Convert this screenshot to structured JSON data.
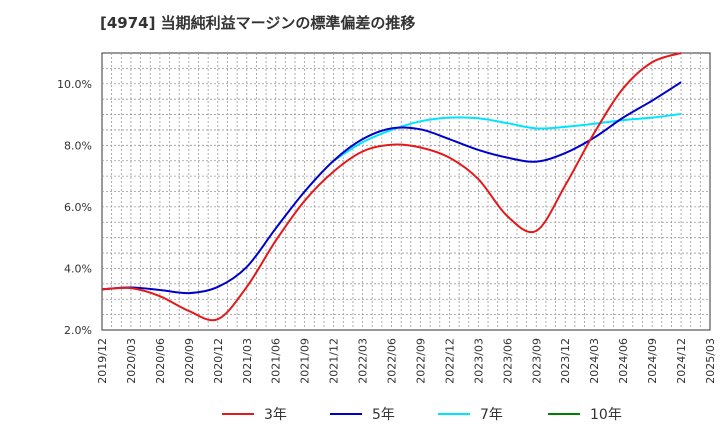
{
  "chart_data": {
    "type": "line",
    "title": "[4974]  当期純利益マージンの標準偏差の推移",
    "xlabel": "",
    "ylabel": "",
    "ylim": [
      2.0,
      11.0
    ],
    "y_ticks": [
      "2.0%",
      "4.0%",
      "6.0%",
      "8.0%",
      "10.0%"
    ],
    "y_tick_values": [
      2,
      4,
      6,
      8,
      10
    ],
    "x_categories": [
      "2019/12",
      "2020/03",
      "2020/06",
      "2020/09",
      "2020/12",
      "2021/03",
      "2021/06",
      "2021/09",
      "2021/12",
      "2022/03",
      "2022/06",
      "2022/09",
      "2022/12",
      "2023/03",
      "2023/06",
      "2023/09",
      "2023/12",
      "2024/03",
      "2024/06",
      "2024/09",
      "2024/12",
      "2025/03"
    ],
    "grid": true,
    "legend_position": "bottom",
    "series": [
      {
        "name": "3年",
        "color": "#e31a1c",
        "points": [
          [
            "2019/12",
            3.32
          ],
          [
            "2020/03",
            3.36
          ],
          [
            "2020/06",
            3.1
          ],
          [
            "2020/09",
            2.62
          ],
          [
            "2020/12",
            2.35
          ],
          [
            "2021/03",
            3.4
          ],
          [
            "2021/06",
            4.9
          ],
          [
            "2021/09",
            6.2
          ],
          [
            "2021/12",
            7.15
          ],
          [
            "2022/03",
            7.8
          ],
          [
            "2022/06",
            8.02
          ],
          [
            "2022/09",
            7.93
          ],
          [
            "2022/12",
            7.6
          ],
          [
            "2023/03",
            6.9
          ],
          [
            "2023/06",
            5.7
          ],
          [
            "2023/09",
            5.22
          ],
          [
            "2023/12",
            6.7
          ],
          [
            "2024/03",
            8.4
          ],
          [
            "2024/06",
            9.85
          ],
          [
            "2024/09",
            10.7
          ],
          [
            "2024/12",
            11.0
          ]
        ]
      },
      {
        "name": "5年",
        "color": "#0000cc",
        "points": [
          [
            "2019/12",
            3.32
          ],
          [
            "2020/03",
            3.38
          ],
          [
            "2020/06",
            3.3
          ],
          [
            "2020/09",
            3.2
          ],
          [
            "2020/12",
            3.4
          ],
          [
            "2021/03",
            4.05
          ],
          [
            "2021/06",
            5.3
          ],
          [
            "2021/09",
            6.5
          ],
          [
            "2021/12",
            7.5
          ],
          [
            "2022/03",
            8.2
          ],
          [
            "2022/06",
            8.55
          ],
          [
            "2022/09",
            8.52
          ],
          [
            "2022/12",
            8.2
          ],
          [
            "2023/03",
            7.85
          ],
          [
            "2023/06",
            7.6
          ],
          [
            "2023/09",
            7.47
          ],
          [
            "2023/12",
            7.75
          ],
          [
            "2024/03",
            8.25
          ],
          [
            "2024/06",
            8.9
          ],
          [
            "2024/09",
            9.45
          ],
          [
            "2024/12",
            10.05
          ]
        ]
      },
      {
        "name": "7年",
        "color": "#00e5ff",
        "points": [
          [
            "2021/12",
            7.5
          ],
          [
            "2022/03",
            8.1
          ],
          [
            "2022/06",
            8.5
          ],
          [
            "2022/09",
            8.78
          ],
          [
            "2022/12",
            8.9
          ],
          [
            "2023/03",
            8.88
          ],
          [
            "2023/06",
            8.72
          ],
          [
            "2023/09",
            8.55
          ],
          [
            "2023/12",
            8.6
          ],
          [
            "2024/03",
            8.7
          ],
          [
            "2024/06",
            8.82
          ],
          [
            "2024/09",
            8.9
          ],
          [
            "2024/12",
            9.02
          ]
        ]
      },
      {
        "name": "10年",
        "color": "#008000",
        "points": []
      }
    ]
  }
}
